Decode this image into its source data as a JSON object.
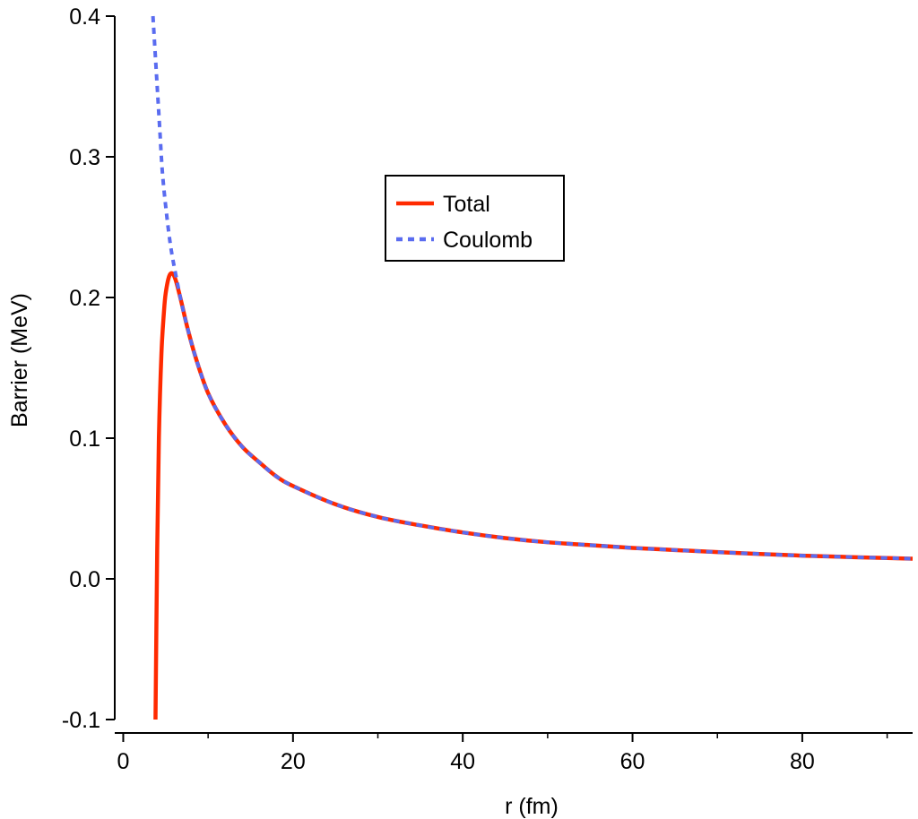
{
  "chart_data": {
    "type": "line",
    "xlabel": "r (fm)",
    "ylabel": "Barrier (MeV)",
    "xlim": [
      -1,
      93
    ],
    "ylim": [
      -0.1,
      0.4
    ],
    "x_ticks": [
      0,
      20,
      40,
      60,
      80
    ],
    "x_tick_labels": [
      "0",
      "20",
      "40",
      "60",
      "80"
    ],
    "y_ticks": [
      -0.1,
      0.0,
      0.1,
      0.2,
      0.3,
      0.4
    ],
    "y_tick_labels": [
      "-0.1",
      "0.0",
      "0.1",
      "0.2",
      "0.3",
      "0.4"
    ],
    "grid": false,
    "legend_position": "upper-center",
    "series": [
      {
        "name": "Total",
        "color": "#ff2a00",
        "style": "solid",
        "x": [
          3.8,
          4.0,
          4.2,
          4.5,
          4.8,
          5.0,
          5.4,
          5.8,
          6.2,
          6.8,
          7.5,
          8.5,
          10,
          12,
          14,
          16,
          18,
          20,
          25,
          30,
          35,
          40,
          45,
          50,
          55,
          60,
          65,
          70,
          75,
          80,
          85,
          90,
          93
        ],
        "y": [
          -0.1,
          0.02,
          0.1,
          0.16,
          0.19,
          0.203,
          0.215,
          0.217,
          0.212,
          0.198,
          0.18,
          0.158,
          0.132,
          0.11,
          0.094,
          0.083,
          0.073,
          0.066,
          0.053,
          0.044,
          0.038,
          0.033,
          0.029,
          0.026,
          0.024,
          0.022,
          0.0205,
          0.019,
          0.0177,
          0.0165,
          0.0156,
          0.0148,
          0.0143
        ]
      },
      {
        "name": "Coulomb",
        "color": "#5a6cf0",
        "style": "dashed",
        "x": [
          3.5,
          3.8,
          4.0,
          4.3,
          4.6,
          5.0,
          5.5,
          6.0,
          6.8,
          7.5,
          8.5,
          10,
          12,
          14,
          16,
          18,
          20,
          25,
          30,
          35,
          40,
          45,
          50,
          55,
          60,
          65,
          70,
          75,
          80,
          85,
          90,
          93
        ],
        "y": [
          0.4,
          0.37,
          0.35,
          0.32,
          0.29,
          0.265,
          0.24,
          0.222,
          0.198,
          0.18,
          0.158,
          0.132,
          0.11,
          0.094,
          0.083,
          0.073,
          0.066,
          0.053,
          0.044,
          0.038,
          0.033,
          0.029,
          0.026,
          0.024,
          0.022,
          0.0205,
          0.019,
          0.0177,
          0.0165,
          0.0156,
          0.0148,
          0.0143
        ]
      }
    ]
  }
}
